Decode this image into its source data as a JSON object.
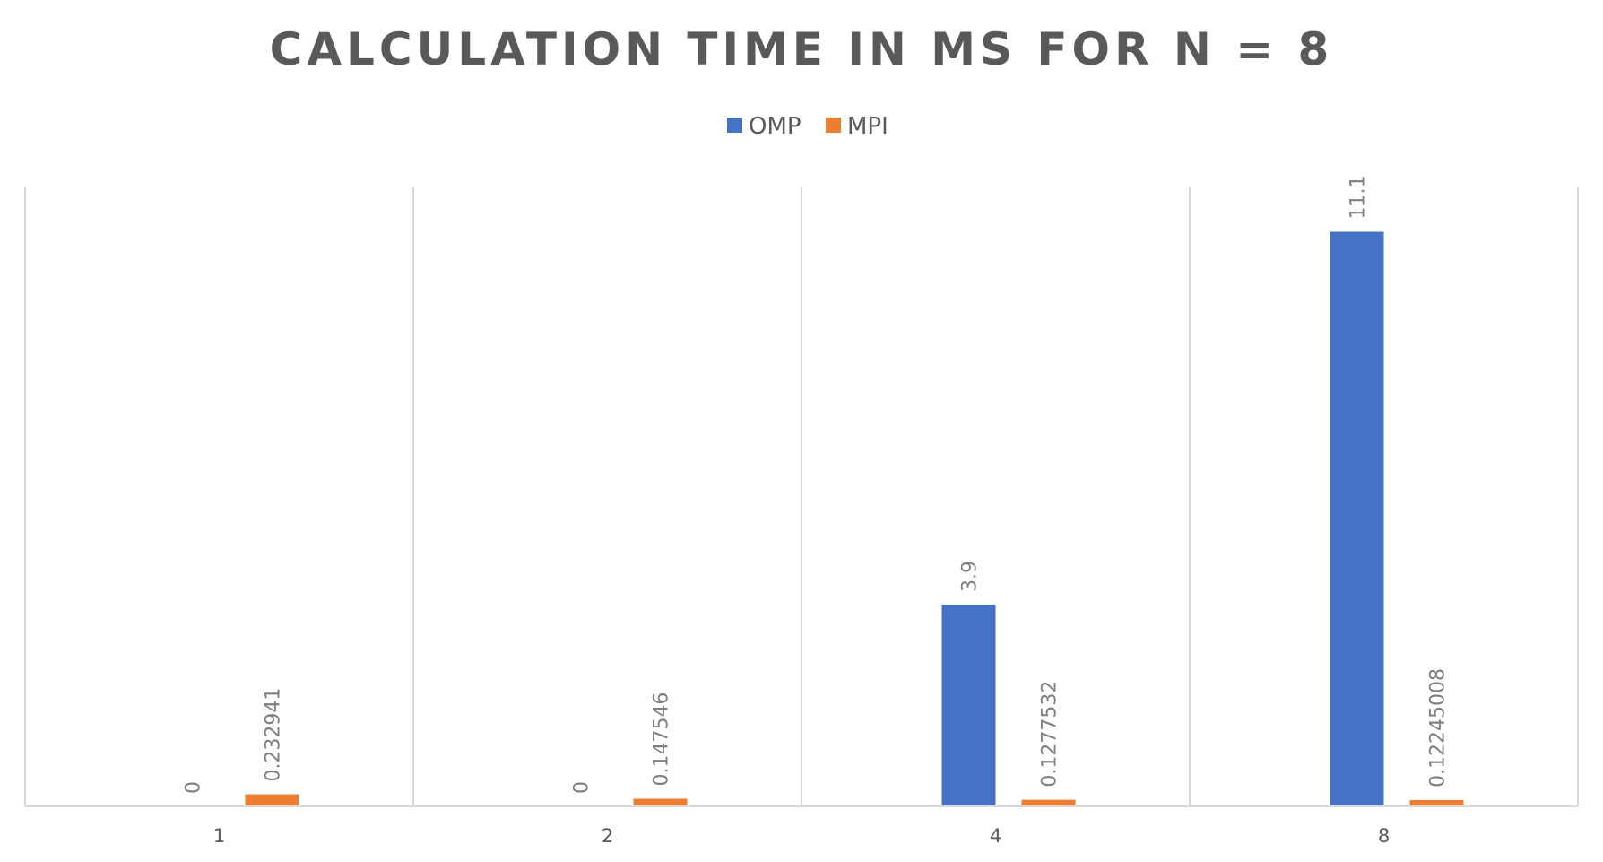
{
  "chart_data": {
    "type": "bar",
    "title": "CALCULATION TIME IN MS FOR N = 8",
    "categories": [
      "1",
      "2",
      "4",
      "8"
    ],
    "series": [
      {
        "name": "OMP",
        "color": "#4472c4",
        "values": [
          0,
          0,
          3.9,
          11.1
        ],
        "labels": [
          "0",
          "0",
          "3.9",
          "11.1"
        ]
      },
      {
        "name": "MPI",
        "color": "#ed7d31",
        "values": [
          0.232941,
          0.147546,
          0.1277532,
          0.12245008
        ],
        "labels": [
          "0.232941",
          "0.147546",
          "0.1277532",
          "0.12245008"
        ]
      }
    ],
    "legend_position": "top",
    "ylim": [
      0,
      12
    ],
    "grid": "vertical category separators",
    "data_labels": "rotated, above bars"
  }
}
